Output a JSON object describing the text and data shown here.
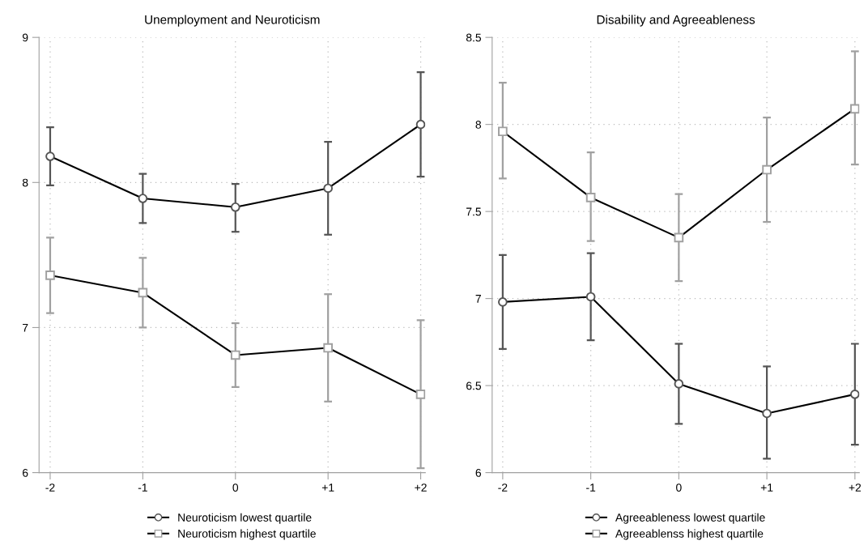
{
  "chart_data": [
    {
      "type": "line",
      "title": "Unemployment and Neuroticism",
      "categories": [
        "-2",
        "-1",
        "0",
        "+1",
        "+2"
      ],
      "ylim": [
        6,
        9
      ],
      "yticks": [
        6,
        7,
        8,
        9
      ],
      "grid": true,
      "legend": "bottom",
      "line_style": "solid",
      "series": [
        {
          "name": "Neuroticism lowest quartile",
          "color": "#555555",
          "marker": "circle",
          "values": [
            8.18,
            7.89,
            7.83,
            7.96,
            8.4
          ],
          "errors": [
            [
              7.98,
              8.38
            ],
            [
              7.72,
              8.06
            ],
            [
              7.66,
              7.99
            ],
            [
              7.64,
              8.28
            ],
            [
              8.04,
              8.76
            ]
          ]
        },
        {
          "name": "Neuroticism highest quartile",
          "color": "#a0a0a0",
          "marker": "square",
          "values": [
            7.36,
            7.24,
            6.81,
            6.86,
            6.54
          ],
          "errors": [
            [
              7.1,
              7.62
            ],
            [
              7.0,
              7.48
            ],
            [
              6.59,
              7.03
            ],
            [
              6.49,
              7.23
            ],
            [
              6.03,
              7.05
            ]
          ]
        }
      ]
    },
    {
      "type": "line",
      "title": "Disability and Agreeableness",
      "categories": [
        "-2",
        "-1",
        "0",
        "+1",
        "+2"
      ],
      "ylim": [
        6,
        8.5
      ],
      "yticks": [
        6,
        6.5,
        7,
        7.5,
        8,
        8.5
      ],
      "grid": true,
      "legend": "bottom",
      "line_style": "solid",
      "series": [
        {
          "name": "Agreeableness lowest quartile",
          "color": "#555555",
          "marker": "circle",
          "values": [
            6.98,
            7.01,
            6.51,
            6.34,
            6.45
          ],
          "errors": [
            [
              6.71,
              7.25
            ],
            [
              6.76,
              7.26
            ],
            [
              6.28,
              6.74
            ],
            [
              6.08,
              6.61
            ],
            [
              6.16,
              6.74
            ]
          ]
        },
        {
          "name": "Agreeablenss highest quartile",
          "color": "#a0a0a0",
          "marker": "square",
          "values": [
            7.96,
            7.58,
            7.35,
            7.74,
            8.09
          ],
          "errors": [
            [
              7.69,
              8.24
            ],
            [
              7.33,
              7.84
            ],
            [
              7.1,
              7.6
            ],
            [
              7.44,
              8.04
            ],
            [
              7.77,
              8.42
            ]
          ]
        }
      ]
    }
  ]
}
